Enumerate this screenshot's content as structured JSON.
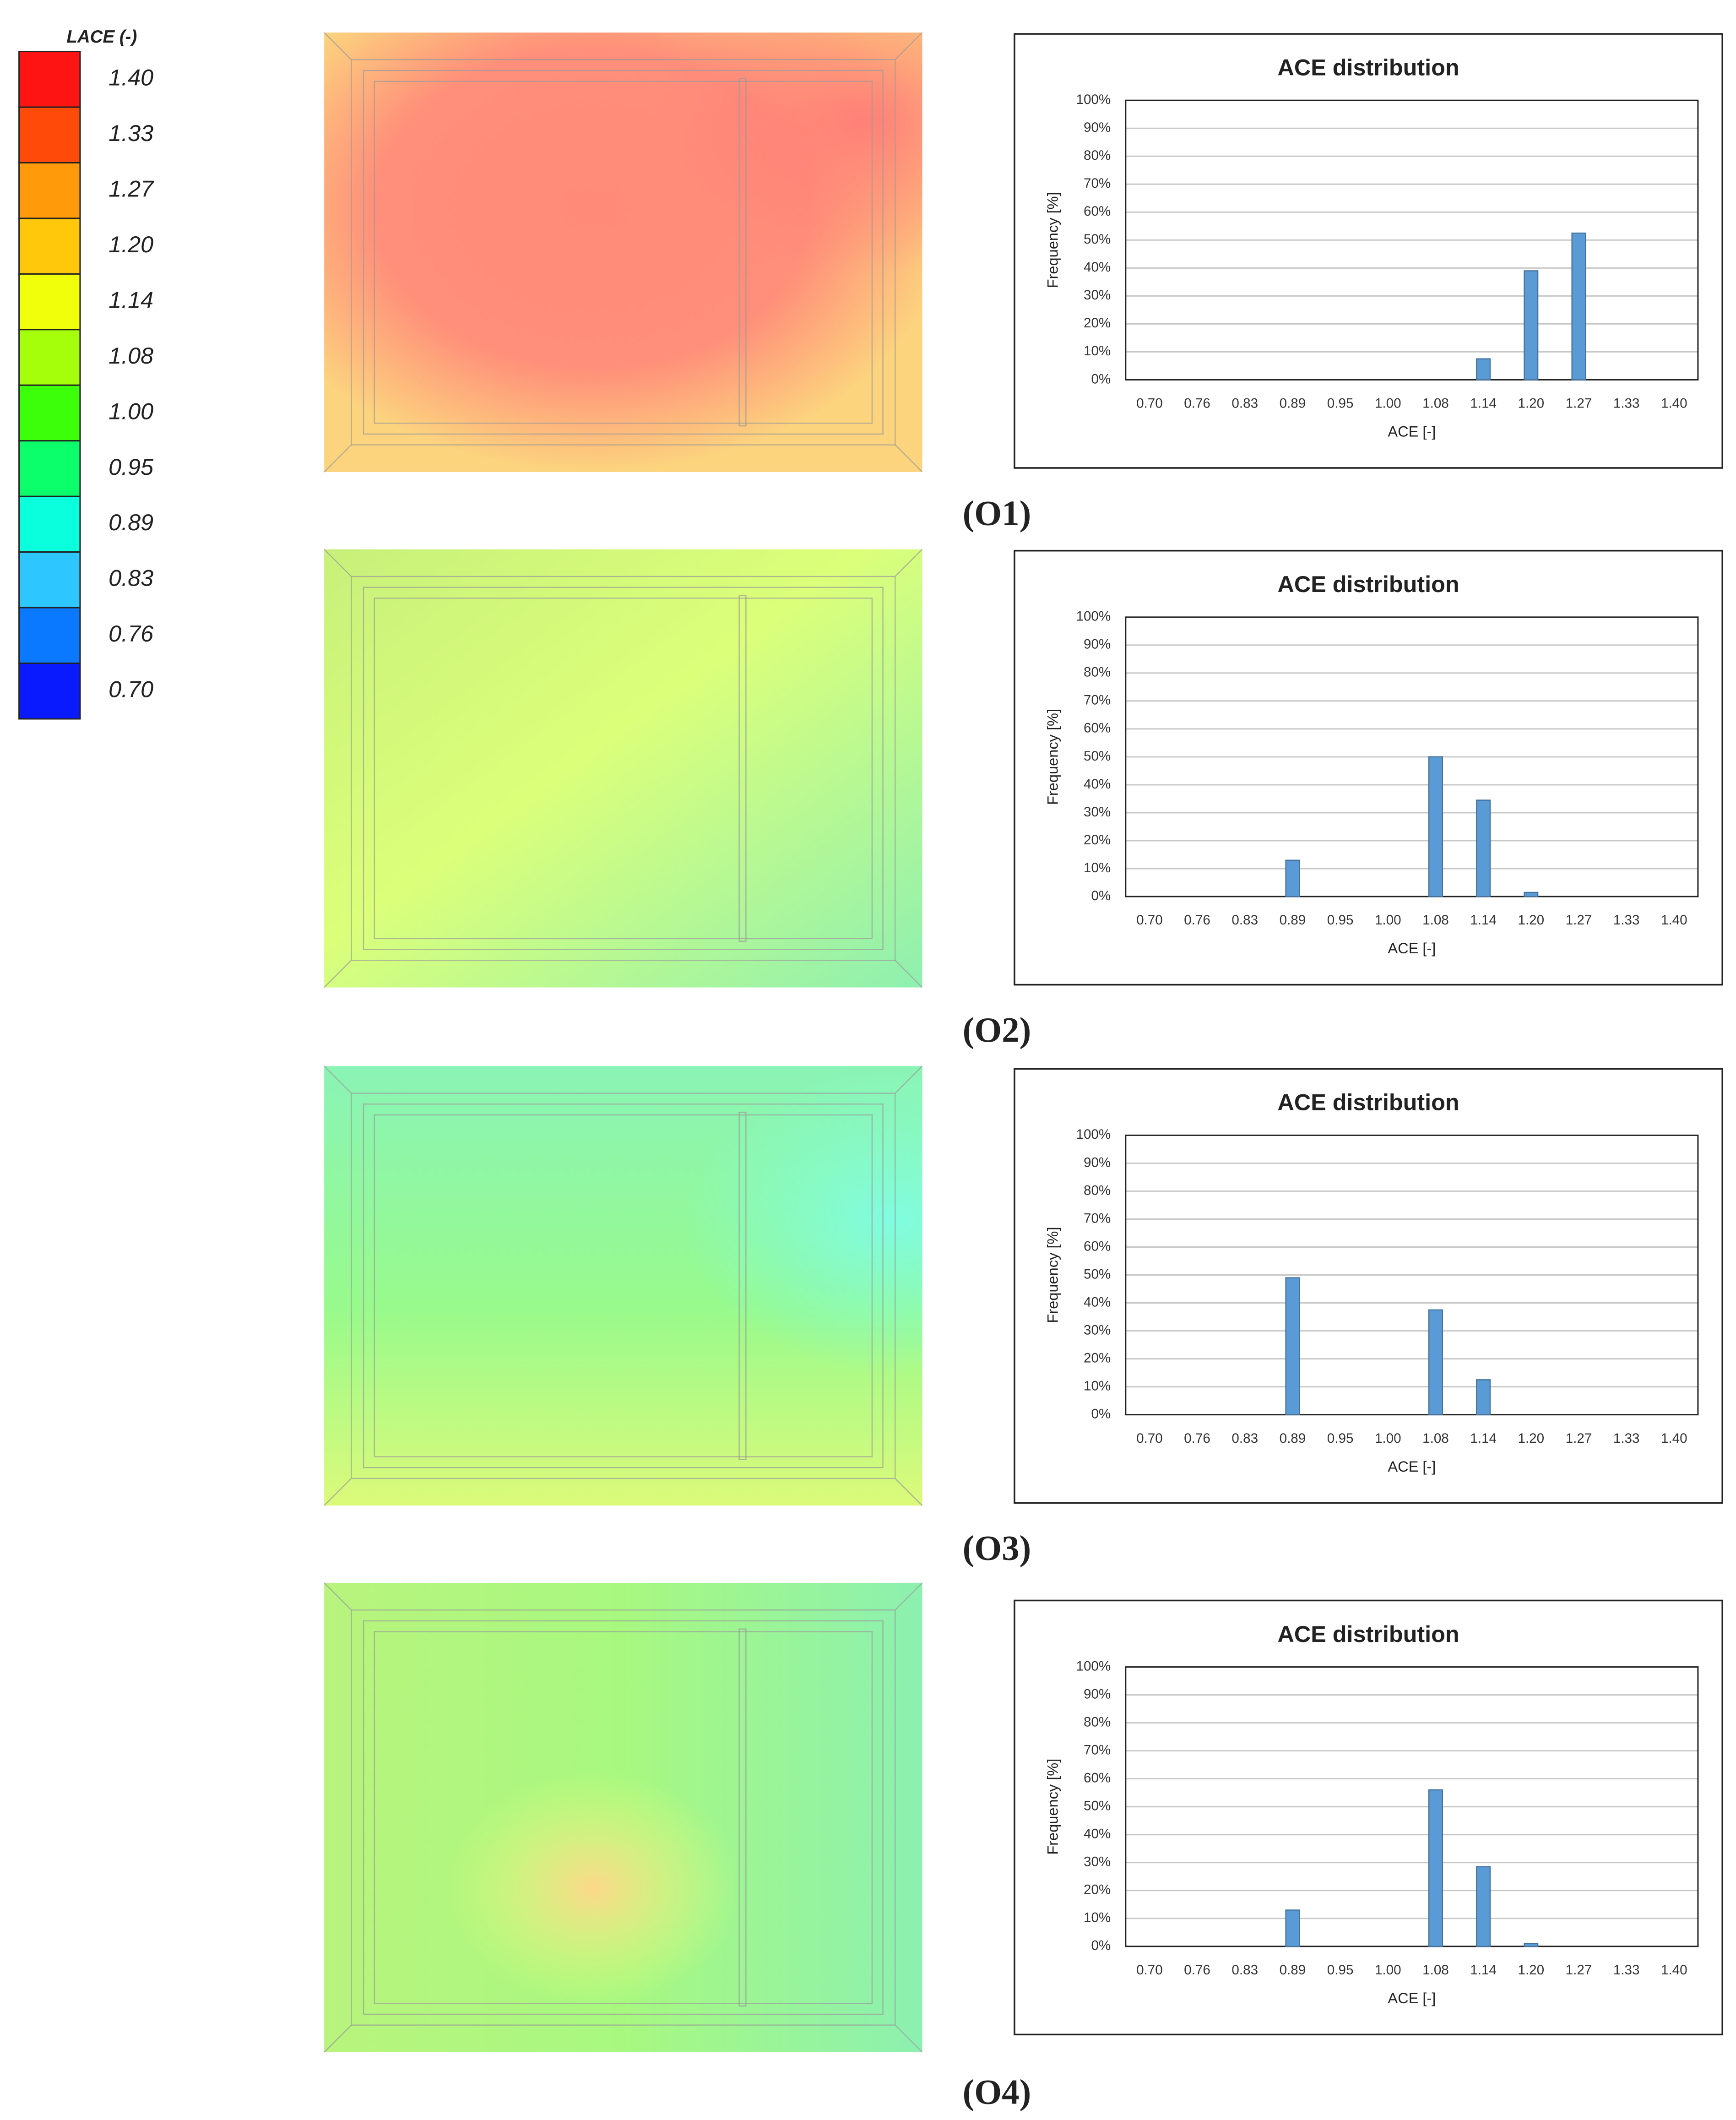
{
  "colorbar": {
    "title": "LACE (-)",
    "labels": [
      "1.40",
      "1.33",
      "1.27",
      "1.20",
      "1.14",
      "1.08",
      "1.00",
      "0.95",
      "0.89",
      "0.83",
      "0.76",
      "0.70"
    ],
    "colors": [
      "#ff1414",
      "#ff4a0a",
      "#ff9a0a",
      "#ffc80a",
      "#f2ff0a",
      "#a6ff0a",
      "#3cff0a",
      "#0aff6a",
      "#0affdc",
      "#2ec6ff",
      "#0a78ff",
      "#0a1aff"
    ]
  },
  "chart_data": [
    {
      "type": "bar",
      "title": "ACE distribution",
      "x_label": "ACE [-]",
      "y_label": "Frequency [%]",
      "panel_label": "(O1)",
      "color": "#5b9bd5",
      "categories": [
        "0.70",
        "0.76",
        "0.83",
        "0.89",
        "0.95",
        "1.00",
        "1.08",
        "1.14",
        "1.20",
        "1.27",
        "1.33",
        "1.40"
      ],
      "values": [
        0,
        0,
        0,
        0,
        0,
        0,
        0,
        7.5,
        39,
        52.5,
        0,
        0
      ],
      "ylim": [
        0,
        100
      ],
      "grid": true,
      "yticks": [
        {
          "value": 0,
          "label": "0%"
        },
        {
          "value": 10,
          "label": "10%"
        },
        {
          "value": 20,
          "label": "20%"
        },
        {
          "value": 30,
          "label": "30%"
        },
        {
          "value": 40,
          "label": "40%"
        },
        {
          "value": 50,
          "label": "50%"
        },
        {
          "value": 60,
          "label": "60%"
        },
        {
          "value": 70,
          "label": "70%"
        },
        {
          "value": 80,
          "label": "80%"
        },
        {
          "value": 90,
          "label": "90%"
        },
        {
          "value": 100,
          "label": "100%"
        }
      ]
    },
    {
      "type": "bar",
      "title": "ACE distribution",
      "x_label": "ACE [-]",
      "y_label": "Frequency [%]",
      "panel_label": "(O2)",
      "color": "#5b9bd5",
      "categories": [
        "0.70",
        "0.76",
        "0.83",
        "0.89",
        "0.95",
        "1.00",
        "1.08",
        "1.14",
        "1.20",
        "1.27",
        "1.33",
        "1.40"
      ],
      "values": [
        0,
        0,
        0,
        13,
        0,
        0,
        50,
        34.5,
        1.5,
        0,
        0,
        0
      ],
      "ylim": [
        0,
        100
      ],
      "grid": true,
      "yticks": [
        {
          "value": 0,
          "label": "0%"
        },
        {
          "value": 10,
          "label": "10%"
        },
        {
          "value": 20,
          "label": "20%"
        },
        {
          "value": 30,
          "label": "30%"
        },
        {
          "value": 40,
          "label": "40%"
        },
        {
          "value": 50,
          "label": "50%"
        },
        {
          "value": 60,
          "label": "60%"
        },
        {
          "value": 70,
          "label": "70%"
        },
        {
          "value": 80,
          "label": "80%"
        },
        {
          "value": 90,
          "label": "90%"
        },
        {
          "value": 100,
          "label": "100%"
        }
      ]
    },
    {
      "type": "bar",
      "title": "ACE distribution",
      "x_label": "ACE [-]",
      "y_label": "Frequency [%]",
      "panel_label": "(O3)",
      "color": "#5b9bd5",
      "categories": [
        "0.70",
        "0.76",
        "0.83",
        "0.89",
        "0.95",
        "1.00",
        "1.08",
        "1.14",
        "1.20",
        "1.27",
        "1.33",
        "1.40"
      ],
      "values": [
        0,
        0,
        0,
        49,
        0,
        0,
        37.5,
        12.5,
        0,
        0,
        0,
        0
      ],
      "ylim": [
        0,
        100
      ],
      "grid": true,
      "yticks": [
        {
          "value": 0,
          "label": "0%"
        },
        {
          "value": 10,
          "label": "10%"
        },
        {
          "value": 20,
          "label": "20%"
        },
        {
          "value": 30,
          "label": "30%"
        },
        {
          "value": 40,
          "label": "40%"
        },
        {
          "value": 50,
          "label": "50%"
        },
        {
          "value": 60,
          "label": "60%"
        },
        {
          "value": 70,
          "label": "70%"
        },
        {
          "value": 80,
          "label": "80%"
        },
        {
          "value": 90,
          "label": "90%"
        },
        {
          "value": 100,
          "label": "100%"
        }
      ]
    },
    {
      "type": "bar",
      "title": "ACE distribution",
      "x_label": "ACE [-]",
      "y_label": "Frequency [%]",
      "panel_label": "(O4)",
      "color": "#5b9bd5",
      "categories": [
        "0.70",
        "0.76",
        "0.83",
        "0.89",
        "0.95",
        "1.00",
        "1.08",
        "1.14",
        "1.20",
        "1.27",
        "1.33",
        "1.40"
      ],
      "values": [
        0,
        0,
        0,
        13,
        0,
        0,
        56,
        28.5,
        1,
        0,
        0,
        0
      ],
      "ylim": [
        0,
        100
      ],
      "grid": true,
      "yticks": [
        {
          "value": 0,
          "label": "0%"
        },
        {
          "value": 10,
          "label": "10%"
        },
        {
          "value": 20,
          "label": "20%"
        },
        {
          "value": 30,
          "label": "30%"
        },
        {
          "value": 40,
          "label": "40%"
        },
        {
          "value": 50,
          "label": "50%"
        },
        {
          "value": 60,
          "label": "60%"
        },
        {
          "value": 70,
          "label": "70%"
        },
        {
          "value": 80,
          "label": "80%"
        },
        {
          "value": 90,
          "label": "90%"
        },
        {
          "value": 100,
          "label": "100%"
        }
      ]
    }
  ]
}
